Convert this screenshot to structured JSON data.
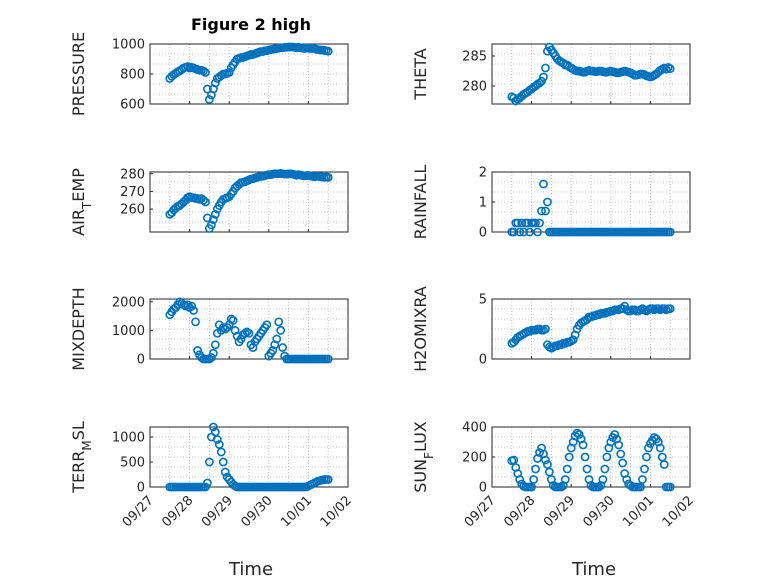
{
  "figure": {
    "title": "Figure 2 high"
  },
  "style": {
    "marker_color": "#0072BD"
  },
  "x_axis": {
    "label": "Time",
    "range": [
      0,
      5
    ],
    "ticks": [
      0,
      1,
      2,
      3,
      4,
      5
    ],
    "tick_labels": [
      "09/27",
      "09/28",
      "09/29",
      "09/30",
      "10/01",
      "10/02"
    ],
    "note": "x values are days since 09/27"
  },
  "chart_data": [
    {
      "type": "scatter",
      "ylabel": "PRESSURE",
      "ylim": [
        600,
        1000
      ],
      "yticks": [
        600,
        800,
        1000
      ],
      "grid": true,
      "x": [
        0.5,
        0.55,
        0.6,
        0.65,
        0.7,
        0.75,
        0.8,
        0.85,
        0.9,
        0.95,
        1.0,
        1.05,
        1.1,
        1.15,
        1.2,
        1.25,
        1.3,
        1.35,
        1.4,
        1.45,
        1.5,
        1.55,
        1.6,
        1.65,
        1.7,
        1.75,
        1.8,
        1.85,
        1.9,
        1.95,
        2.0,
        2.05,
        2.1,
        2.15,
        2.2,
        2.25,
        2.3,
        2.35,
        2.4,
        2.45,
        2.5,
        2.55,
        2.6,
        2.65,
        2.7,
        2.75,
        2.8,
        2.85,
        2.9,
        2.95,
        3.0,
        3.05,
        3.1,
        3.15,
        3.2,
        3.25,
        3.3,
        3.35,
        3.4,
        3.45,
        3.5,
        3.55,
        3.6,
        3.65,
        3.7,
        3.75,
        3.8,
        3.85,
        3.9,
        3.95,
        4.0,
        4.05,
        4.1,
        4.15,
        4.2,
        4.25,
        4.3,
        4.35,
        4.4,
        4.45,
        4.5
      ],
      "y": [
        770,
        785,
        795,
        805,
        815,
        820,
        830,
        840,
        845,
        850,
        840,
        845,
        840,
        835,
        830,
        825,
        825,
        820,
        810,
        700,
        630,
        660,
        700,
        740,
        770,
        780,
        790,
        800,
        800,
        805,
        810,
        840,
        860,
        880,
        900,
        905,
        910,
        910,
        915,
        920,
        925,
        930,
        930,
        935,
        940,
        945,
        950,
        950,
        955,
        955,
        960,
        962,
        965,
        968,
        970,
        972,
        975,
        975,
        978,
        978,
        980,
        980,
        980,
        978,
        975,
        978,
        975,
        972,
        970,
        975,
        972,
        970,
        972,
        968,
        965,
        962,
        960,
        960,
        958,
        955,
        952
      ]
    },
    {
      "type": "scatter",
      "ylabel": "THETA",
      "ylim": [
        277,
        287
      ],
      "yticks": [
        280,
        285
      ],
      "grid": true,
      "x": [
        0.5,
        0.55,
        0.6,
        0.65,
        0.7,
        0.75,
        0.8,
        0.85,
        0.9,
        0.95,
        1.0,
        1.05,
        1.1,
        1.15,
        1.2,
        1.25,
        1.3,
        1.35,
        1.4,
        1.45,
        1.5,
        1.55,
        1.6,
        1.65,
        1.7,
        1.75,
        1.8,
        1.85,
        1.9,
        1.95,
        2.0,
        2.05,
        2.1,
        2.15,
        2.2,
        2.25,
        2.3,
        2.35,
        2.4,
        2.45,
        2.5,
        2.55,
        2.6,
        2.65,
        2.7,
        2.75,
        2.8,
        2.85,
        2.9,
        2.95,
        3.0,
        3.05,
        3.1,
        3.15,
        3.2,
        3.25,
        3.3,
        3.35,
        3.4,
        3.45,
        3.5,
        3.55,
        3.6,
        3.65,
        3.7,
        3.75,
        3.8,
        3.85,
        3.9,
        3.95,
        4.0,
        4.05,
        4.1,
        4.15,
        4.2,
        4.25,
        4.3,
        4.35,
        4.4,
        4.45,
        4.5
      ],
      "y": [
        278.2,
        278.0,
        277.5,
        277.8,
        278.0,
        278.3,
        278.6,
        278.8,
        279.0,
        279.3,
        279.5,
        279.8,
        280.0,
        280.3,
        280.5,
        280.8,
        281.5,
        283.0,
        285.8,
        286.5,
        286.0,
        285.5,
        285.0,
        284.5,
        284.2,
        284.0,
        283.8,
        283.5,
        283.5,
        283.2,
        283.0,
        282.8,
        282.6,
        282.5,
        282.5,
        282.4,
        282.3,
        282.3,
        282.5,
        282.6,
        282.5,
        282.5,
        282.4,
        282.4,
        282.5,
        282.5,
        282.4,
        282.3,
        282.3,
        282.4,
        282.5,
        282.4,
        282.3,
        282.2,
        282.2,
        282.3,
        282.4,
        282.5,
        282.4,
        282.3,
        282.2,
        282.0,
        281.8,
        281.8,
        281.9,
        282.0,
        282.0,
        281.9,
        281.7,
        281.6,
        281.5,
        281.6,
        281.8,
        282.0,
        282.3,
        282.6,
        282.8,
        283.0,
        282.8,
        283.1,
        282.9
      ]
    },
    {
      "type": "scatter",
      "ylabel": "AIR_TEMP",
      "ylim": [
        247,
        281
      ],
      "yticks": [
        260,
        270,
        280
      ],
      "grid": true,
      "x": [
        0.5,
        0.55,
        0.6,
        0.65,
        0.7,
        0.75,
        0.8,
        0.85,
        0.9,
        0.95,
        1.0,
        1.05,
        1.1,
        1.15,
        1.2,
        1.25,
        1.3,
        1.35,
        1.4,
        1.45,
        1.5,
        1.55,
        1.6,
        1.65,
        1.7,
        1.75,
        1.8,
        1.85,
        1.9,
        1.95,
        2.0,
        2.05,
        2.1,
        2.15,
        2.2,
        2.25,
        2.3,
        2.35,
        2.4,
        2.45,
        2.5,
        2.55,
        2.6,
        2.65,
        2.7,
        2.75,
        2.8,
        2.85,
        2.9,
        2.95,
        3.0,
        3.05,
        3.1,
        3.15,
        3.2,
        3.25,
        3.3,
        3.35,
        3.4,
        3.45,
        3.5,
        3.55,
        3.6,
        3.65,
        3.7,
        3.75,
        3.8,
        3.85,
        3.9,
        3.95,
        4.0,
        4.05,
        4.1,
        4.15,
        4.2,
        4.25,
        4.3,
        4.35,
        4.4,
        4.45,
        4.5
      ],
      "y": [
        257,
        258,
        259.5,
        260.5,
        261.5,
        262,
        263,
        264,
        265,
        266.5,
        267,
        266.5,
        266.5,
        266,
        266,
        265.5,
        266,
        265,
        264,
        255,
        249,
        251,
        254,
        257,
        260,
        262,
        264,
        265.5,
        266,
        266.5,
        267,
        268.5,
        270,
        272,
        273,
        274,
        275,
        275.2,
        275.5,
        276,
        276.5,
        277,
        277.2,
        277.5,
        278,
        278.3,
        278.5,
        278.6,
        279,
        279.2,
        279.5,
        279.5,
        279.8,
        280,
        280,
        280,
        280.2,
        280,
        279.8,
        279.8,
        280,
        280,
        279.8,
        279.5,
        279.2,
        279.5,
        279.2,
        279,
        278.8,
        279,
        279,
        278.8,
        278.5,
        278.3,
        278.5,
        278.5,
        278.3,
        278.2,
        278,
        278.2,
        278
      ]
    },
    {
      "type": "scatter",
      "ylabel": "RAINFALL",
      "ylim": [
        0,
        2
      ],
      "yticks": [
        0,
        1,
        2
      ],
      "grid": true,
      "x": [
        0.5,
        0.55,
        0.6,
        0.65,
        0.7,
        0.75,
        0.8,
        0.85,
        0.9,
        0.95,
        1.0,
        1.05,
        1.1,
        1.15,
        1.2,
        1.25,
        1.3,
        1.35,
        1.4,
        1.45,
        1.5,
        1.55,
        1.6,
        1.65,
        1.7,
        1.75,
        1.8,
        1.85,
        1.9,
        1.95,
        2.0,
        2.05,
        2.1,
        2.15,
        2.2,
        2.25,
        2.3,
        2.35,
        2.4,
        2.45,
        2.5,
        2.55,
        2.6,
        2.65,
        2.7,
        2.75,
        2.8,
        2.85,
        2.9,
        2.95,
        3.0,
        3.05,
        3.1,
        3.15,
        3.2,
        3.25,
        3.3,
        3.35,
        3.4,
        3.45,
        3.5,
        3.55,
        3.6,
        3.65,
        3.7,
        3.75,
        3.8,
        3.85,
        3.9,
        3.95,
        4.0,
        4.05,
        4.1,
        4.15,
        4.2,
        4.25,
        4.3,
        4.35,
        4.4,
        4.45,
        4.5
      ],
      "y": [
        0,
        0,
        0.3,
        0.3,
        0,
        0.3,
        0,
        0.3,
        0.3,
        0,
        0.3,
        0.3,
        0.3,
        0,
        0.3,
        0.7,
        1.6,
        0.7,
        1.0,
        0,
        0,
        0,
        0,
        0,
        0,
        0,
        0,
        0,
        0,
        0,
        0,
        0,
        0,
        0,
        0,
        0,
        0,
        0,
        0,
        0,
        0,
        0,
        0,
        0,
        0,
        0,
        0,
        0,
        0,
        0,
        0,
        0,
        0,
        0,
        0,
        0,
        0,
        0,
        0,
        0,
        0,
        0,
        0,
        0,
        0,
        0,
        0,
        0,
        0,
        0,
        0,
        0,
        0,
        0,
        0,
        0,
        0,
        0,
        0,
        0,
        0
      ]
    },
    {
      "type": "scatter",
      "ylabel": "MIXDEPTH",
      "ylim": [
        0,
        2100
      ],
      "yticks": [
        0,
        1000,
        2000
      ],
      "grid": true,
      "x": [
        0.5,
        0.55,
        0.6,
        0.65,
        0.7,
        0.75,
        0.8,
        0.85,
        0.9,
        0.95,
        1.0,
        1.05,
        1.1,
        1.15,
        1.2,
        1.25,
        1.3,
        1.35,
        1.4,
        1.45,
        1.5,
        1.55,
        1.6,
        1.65,
        1.7,
        1.75,
        1.8,
        1.85,
        1.9,
        1.95,
        2.0,
        2.05,
        2.1,
        2.15,
        2.2,
        2.25,
        2.3,
        2.35,
        2.4,
        2.45,
        2.5,
        2.55,
        2.6,
        2.65,
        2.7,
        2.75,
        2.8,
        2.85,
        2.9,
        2.95,
        3.0,
        3.05,
        3.1,
        3.15,
        3.2,
        3.25,
        3.3,
        3.35,
        3.4,
        3.45,
        3.5,
        3.55,
        3.6,
        3.65,
        3.7,
        3.75,
        3.8,
        3.85,
        3.9,
        3.95,
        4.0,
        4.05,
        4.1,
        4.15,
        4.2,
        4.25,
        4.3,
        4.35,
        4.4,
        4.45,
        4.5
      ],
      "y": [
        1550,
        1650,
        1750,
        1800,
        1900,
        2000,
        1950,
        1900,
        1850,
        1900,
        1800,
        1850,
        1700,
        1300,
        300,
        150,
        50,
        0,
        0,
        0,
        0,
        50,
        200,
        500,
        900,
        1200,
        1000,
        1100,
        1050,
        1100,
        1200,
        1400,
        1350,
        1000,
        800,
        600,
        700,
        850,
        900,
        950,
        900,
        500,
        400,
        600,
        700,
        800,
        900,
        1000,
        1100,
        1200,
        100,
        200,
        300,
        500,
        700,
        1300,
        1000,
        400,
        100,
        0,
        0,
        0,
        0,
        0,
        0,
        0,
        0,
        0,
        0,
        0,
        0,
        0,
        0,
        0,
        0,
        0,
        0,
        0,
        0,
        0,
        0
      ]
    },
    {
      "type": "scatter",
      "ylabel": "H2OMIXRA",
      "ylim": [
        0,
        5
      ],
      "yticks": [
        0,
        5
      ],
      "grid": true,
      "x": [
        0.5,
        0.55,
        0.6,
        0.65,
        0.7,
        0.75,
        0.8,
        0.85,
        0.9,
        0.95,
        1.0,
        1.05,
        1.1,
        1.15,
        1.2,
        1.25,
        1.3,
        1.35,
        1.4,
        1.45,
        1.5,
        1.55,
        1.6,
        1.65,
        1.7,
        1.75,
        1.8,
        1.85,
        1.9,
        1.95,
        2.0,
        2.05,
        2.1,
        2.15,
        2.2,
        2.25,
        2.3,
        2.35,
        2.4,
        2.45,
        2.5,
        2.55,
        2.6,
        2.65,
        2.7,
        2.75,
        2.8,
        2.85,
        2.9,
        2.95,
        3.0,
        3.05,
        3.1,
        3.15,
        3.2,
        3.25,
        3.3,
        3.35,
        3.4,
        3.45,
        3.5,
        3.55,
        3.6,
        3.65,
        3.7,
        3.75,
        3.8,
        3.85,
        3.9,
        3.95,
        4.0,
        4.05,
        4.1,
        4.15,
        4.2,
        4.25,
        4.3,
        4.35,
        4.4,
        4.45,
        4.5
      ],
      "y": [
        1.3,
        1.4,
        1.6,
        1.8,
        1.9,
        2.0,
        2.1,
        2.2,
        2.3,
        2.3,
        2.4,
        2.4,
        2.4,
        2.5,
        2.5,
        2.4,
        2.4,
        2.5,
        1.2,
        1.0,
        0.9,
        1.0,
        1.1,
        1.1,
        1.2,
        1.2,
        1.3,
        1.3,
        1.4,
        1.4,
        1.5,
        1.6,
        2.0,
        2.5,
        2.8,
        3.0,
        3.1,
        3.2,
        3.3,
        3.5,
        3.5,
        3.6,
        3.6,
        3.7,
        3.7,
        3.8,
        3.8,
        3.8,
        3.9,
        3.9,
        4.0,
        4.0,
        4.1,
        4.1,
        4.1,
        4.2,
        4.2,
        4.4,
        4.1,
        4.0,
        4.0,
        4.1,
        4.1,
        4.0,
        4.0,
        4.1,
        4.2,
        4.1,
        4.0,
        4.1,
        4.2,
        4.2,
        4.1,
        4.2,
        4.2,
        4.1,
        4.2,
        4.2,
        4.1,
        4.2,
        4.2
      ]
    },
    {
      "type": "scatter",
      "ylabel": "TERR_MSL",
      "ylim": [
        0,
        1200
      ],
      "yticks": [
        0,
        500,
        1000
      ],
      "grid": true,
      "x": [
        0.5,
        0.55,
        0.6,
        0.65,
        0.7,
        0.75,
        0.8,
        0.85,
        0.9,
        0.95,
        1.0,
        1.05,
        1.1,
        1.15,
        1.2,
        1.25,
        1.3,
        1.35,
        1.4,
        1.45,
        1.5,
        1.55,
        1.6,
        1.65,
        1.7,
        1.75,
        1.8,
        1.85,
        1.9,
        1.95,
        2.0,
        2.05,
        2.1,
        2.15,
        2.2,
        2.25,
        2.3,
        2.35,
        2.4,
        2.45,
        2.5,
        2.55,
        2.6,
        2.65,
        2.7,
        2.75,
        2.8,
        2.85,
        2.9,
        2.95,
        3.0,
        3.05,
        3.1,
        3.15,
        3.2,
        3.25,
        3.3,
        3.35,
        3.4,
        3.45,
        3.5,
        3.55,
        3.6,
        3.65,
        3.7,
        3.75,
        3.8,
        3.85,
        3.9,
        3.95,
        4.0,
        4.05,
        4.1,
        4.15,
        4.2,
        4.25,
        4.3,
        4.35,
        4.4,
        4.45,
        4.5
      ],
      "y": [
        0,
        0,
        0,
        0,
        0,
        0,
        0,
        0,
        0,
        0,
        0,
        0,
        0,
        0,
        0,
        0,
        0,
        0,
        0,
        80,
        500,
        1000,
        1200,
        1100,
        950,
        850,
        700,
        500,
        300,
        200,
        150,
        100,
        50,
        20,
        0,
        0,
        0,
        0,
        0,
        0,
        0,
        0,
        0,
        0,
        0,
        0,
        0,
        0,
        0,
        0,
        0,
        0,
        0,
        0,
        0,
        0,
        0,
        0,
        0,
        0,
        0,
        0,
        0,
        0,
        0,
        0,
        0,
        0,
        0,
        0,
        20,
        40,
        60,
        80,
        100,
        120,
        130,
        140,
        150,
        150,
        150
      ]
    },
    {
      "type": "scatter",
      "ylabel": "SUN_FLUX",
      "ylim": [
        0,
        400
      ],
      "yticks": [
        0,
        200,
        400
      ],
      "grid": true,
      "x": [
        0.5,
        0.55,
        0.6,
        0.65,
        0.7,
        0.75,
        0.8,
        0.85,
        0.9,
        0.95,
        1.0,
        1.05,
        1.1,
        1.15,
        1.2,
        1.25,
        1.3,
        1.35,
        1.4,
        1.45,
        1.5,
        1.55,
        1.6,
        1.65,
        1.7,
        1.75,
        1.8,
        1.85,
        1.9,
        1.95,
        2.0,
        2.05,
        2.1,
        2.15,
        2.2,
        2.25,
        2.3,
        2.35,
        2.4,
        2.45,
        2.5,
        2.55,
        2.6,
        2.65,
        2.7,
        2.75,
        2.8,
        2.85,
        2.9,
        2.95,
        3.0,
        3.05,
        3.1,
        3.15,
        3.2,
        3.25,
        3.3,
        3.35,
        3.4,
        3.45,
        3.5,
        3.55,
        3.6,
        3.65,
        3.7,
        3.75,
        3.8,
        3.85,
        3.9,
        3.95,
        4.0,
        4.05,
        4.1,
        4.15,
        4.2,
        4.25,
        4.3,
        4.35,
        4.4,
        4.45,
        4.5
      ],
      "y": [
        175,
        180,
        130,
        90,
        50,
        20,
        5,
        0,
        0,
        0,
        0,
        50,
        120,
        190,
        230,
        260,
        220,
        180,
        150,
        100,
        50,
        10,
        0,
        0,
        0,
        0,
        10,
        50,
        120,
        200,
        260,
        300,
        340,
        360,
        350,
        320,
        280,
        200,
        120,
        50,
        10,
        0,
        0,
        0,
        0,
        10,
        50,
        120,
        200,
        260,
        300,
        330,
        350,
        320,
        280,
        220,
        160,
        90,
        50,
        20,
        10,
        0,
        0,
        0,
        0,
        0,
        50,
        120,
        200,
        260,
        290,
        310,
        330,
        320,
        300,
        260,
        200,
        150,
        0,
        0,
        0
      ]
    }
  ]
}
